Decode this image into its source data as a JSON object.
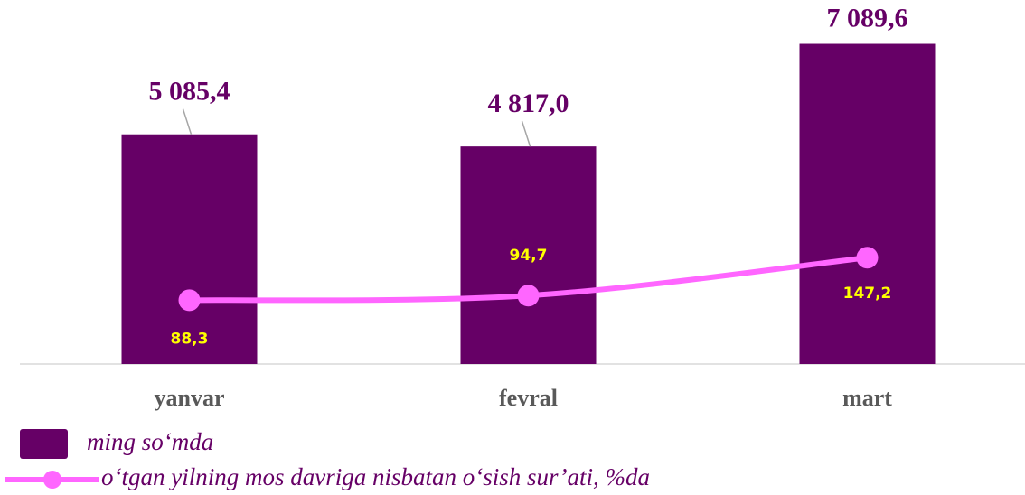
{
  "chart_data": {
    "type": "bar",
    "categories": [
      "yanvar",
      "fevral",
      "mart"
    ],
    "ylim": [
      0,
      8000
    ],
    "y2lim": [
      0,
      500
    ],
    "series": [
      {
        "name": "ming so‘mda",
        "type": "bar",
        "color": "#660066",
        "values": [
          5085.4,
          4817.0,
          7089.6
        ],
        "value_labels": [
          "5 085,4",
          "4 817,0",
          "7 089,6"
        ]
      },
      {
        "name": "o‘tgan yilning mos davriga nisbatan o‘sish sur’ati, %da",
        "type": "line",
        "axis": "y2",
        "color": "#ff66ff",
        "values": [
          88.3,
          94.7,
          147.2
        ],
        "value_labels": [
          "88,3",
          "94,7",
          "147,2"
        ]
      }
    ]
  }
}
